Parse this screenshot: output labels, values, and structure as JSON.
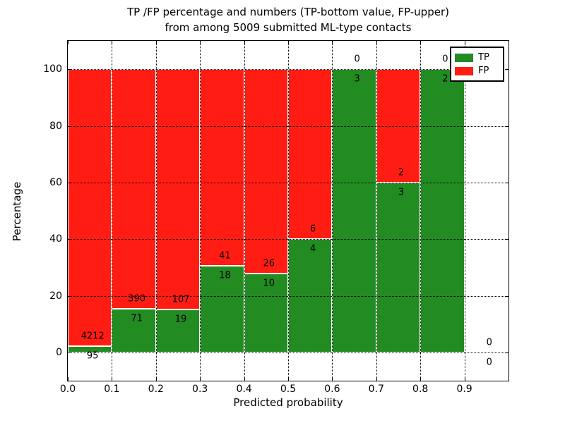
{
  "chart_data": {
    "type": "bar",
    "stacked": true,
    "normalized_percent": true,
    "title_lines": [
      "TP /FP percentage and numbers (TP-bottom value, FP-upper)",
      "from among 5009 submitted ML-type contacts"
    ],
    "xlabel": "Predicted probability",
    "ylabel": "Percentage",
    "xlim": [
      0.0,
      1.0
    ],
    "ylim": [
      -10,
      110
    ],
    "grid": "dotted",
    "xticks": [
      {
        "pos": 0.0,
        "label": "0.0"
      },
      {
        "pos": 0.1,
        "label": "0.1"
      },
      {
        "pos": 0.2,
        "label": "0.2"
      },
      {
        "pos": 0.3,
        "label": "0.3"
      },
      {
        "pos": 0.4,
        "label": "0.4"
      },
      {
        "pos": 0.5,
        "label": "0.5"
      },
      {
        "pos": 0.6,
        "label": "0.6"
      },
      {
        "pos": 0.7,
        "label": "0.7"
      },
      {
        "pos": 0.8,
        "label": "0.8"
      },
      {
        "pos": 0.9,
        "label": "0.9"
      }
    ],
    "yticks": [
      {
        "pos": 0,
        "label": "0"
      },
      {
        "pos": 20,
        "label": "20"
      },
      {
        "pos": 40,
        "label": "40"
      },
      {
        "pos": 60,
        "label": "60"
      },
      {
        "pos": 80,
        "label": "80"
      },
      {
        "pos": 100,
        "label": "100"
      }
    ],
    "bins": [
      {
        "range": [
          0.0,
          0.1
        ],
        "tp": 95,
        "fp": 4212
      },
      {
        "range": [
          0.1,
          0.2
        ],
        "tp": 71,
        "fp": 390
      },
      {
        "range": [
          0.2,
          0.3
        ],
        "tp": 19,
        "fp": 107
      },
      {
        "range": [
          0.3,
          0.4
        ],
        "tp": 18,
        "fp": 41
      },
      {
        "range": [
          0.4,
          0.5
        ],
        "tp": 10,
        "fp": 26
      },
      {
        "range": [
          0.5,
          0.6
        ],
        "tp": 4,
        "fp": 6
      },
      {
        "range": [
          0.6,
          0.7
        ],
        "tp": 3,
        "fp": 0
      },
      {
        "range": [
          0.7,
          0.8
        ],
        "tp": 3,
        "fp": 2
      },
      {
        "range": [
          0.8,
          0.9
        ],
        "tp": 2,
        "fp": 0
      },
      {
        "range": [
          0.9,
          1.0
        ],
        "tp": 0,
        "fp": 0
      }
    ],
    "legend": [
      {
        "label": "TP",
        "color": "#228b22"
      },
      {
        "label": "FP",
        "color": "#ff1d13"
      }
    ],
    "legend_position": "upper right",
    "colors": {
      "tp": "#228b22",
      "fp": "#ff1d13",
      "bar_edge": "#ffffff",
      "grid": "#000000",
      "text": "#000000",
      "background": "#ffffff"
    }
  }
}
